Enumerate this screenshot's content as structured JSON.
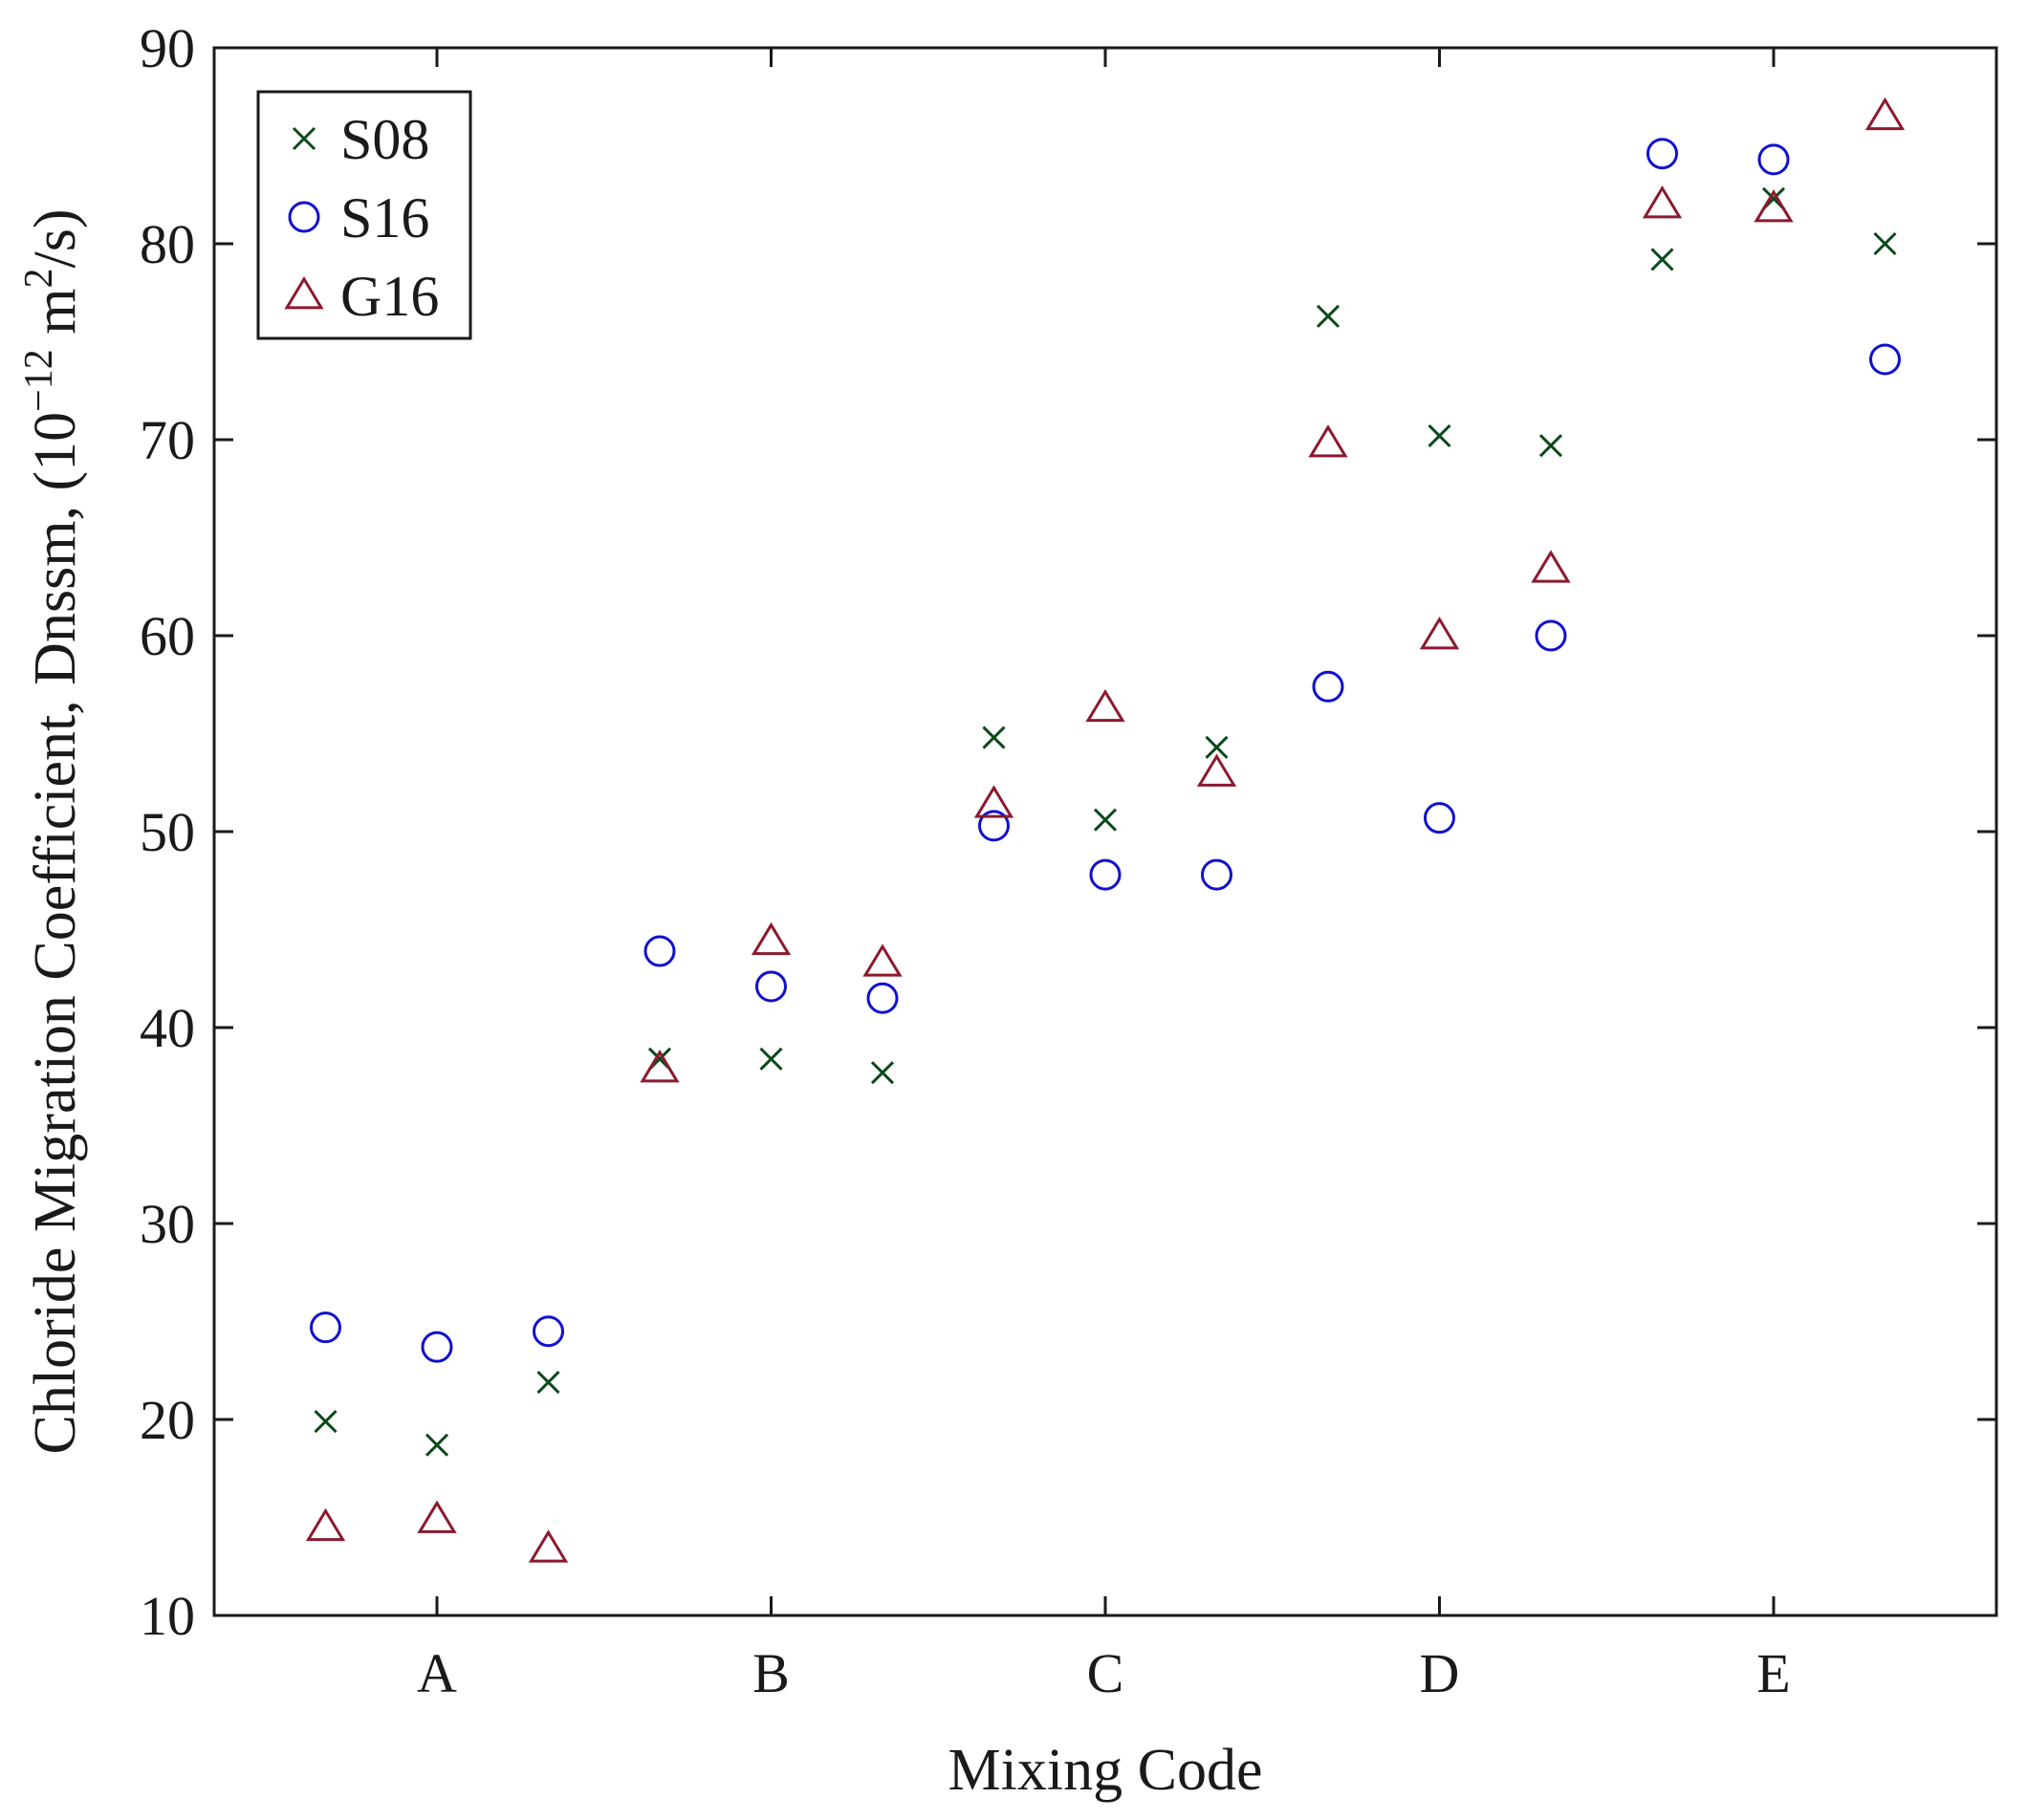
{
  "chart_data": {
    "type": "scatter",
    "title": "",
    "xlabel": "Mixing Code",
    "ylabel_parts": {
      "prefix": "Chloride Migration Coefficient, Dnssm, (10",
      "exp1": "−12",
      "mid": " m",
      "exp2": "2",
      "suffix": "/s)"
    },
    "ylim": [
      10,
      90
    ],
    "yticks": [
      10,
      20,
      30,
      40,
      50,
      60,
      70,
      80,
      90
    ],
    "xlim": [
      0,
      16
    ],
    "categories": [
      "A",
      "B",
      "C",
      "D",
      "E"
    ],
    "category_positions": [
      2,
      5,
      8,
      11,
      14
    ],
    "x": [
      1,
      2,
      3,
      4,
      5,
      6,
      7,
      8,
      9,
      10,
      11,
      12,
      13,
      14,
      15
    ],
    "legend_position": "top-left",
    "series": [
      {
        "name": "S08",
        "marker": "x",
        "color": "#0b4a1a",
        "values": [
          19.9,
          18.7,
          21.9,
          38.4,
          38.4,
          37.7,
          54.8,
          50.6,
          54.3,
          76.3,
          70.2,
          69.7,
          79.2,
          82.3,
          80.0
        ]
      },
      {
        "name": "S16",
        "marker": "circle",
        "color": "#1010d0",
        "values": [
          24.7,
          23.7,
          24.5,
          43.9,
          42.1,
          41.5,
          50.3,
          47.8,
          47.8,
          57.4,
          50.7,
          60.0,
          84.6,
          84.3,
          74.1
        ]
      },
      {
        "name": "G16",
        "marker": "triangle",
        "color": "#8b1a2e",
        "values": [
          14.5,
          14.9,
          13.4,
          37.9,
          44.4,
          43.3,
          51.4,
          56.3,
          53.0,
          69.8,
          60.0,
          63.4,
          82.0,
          81.8,
          86.5
        ]
      }
    ]
  }
}
